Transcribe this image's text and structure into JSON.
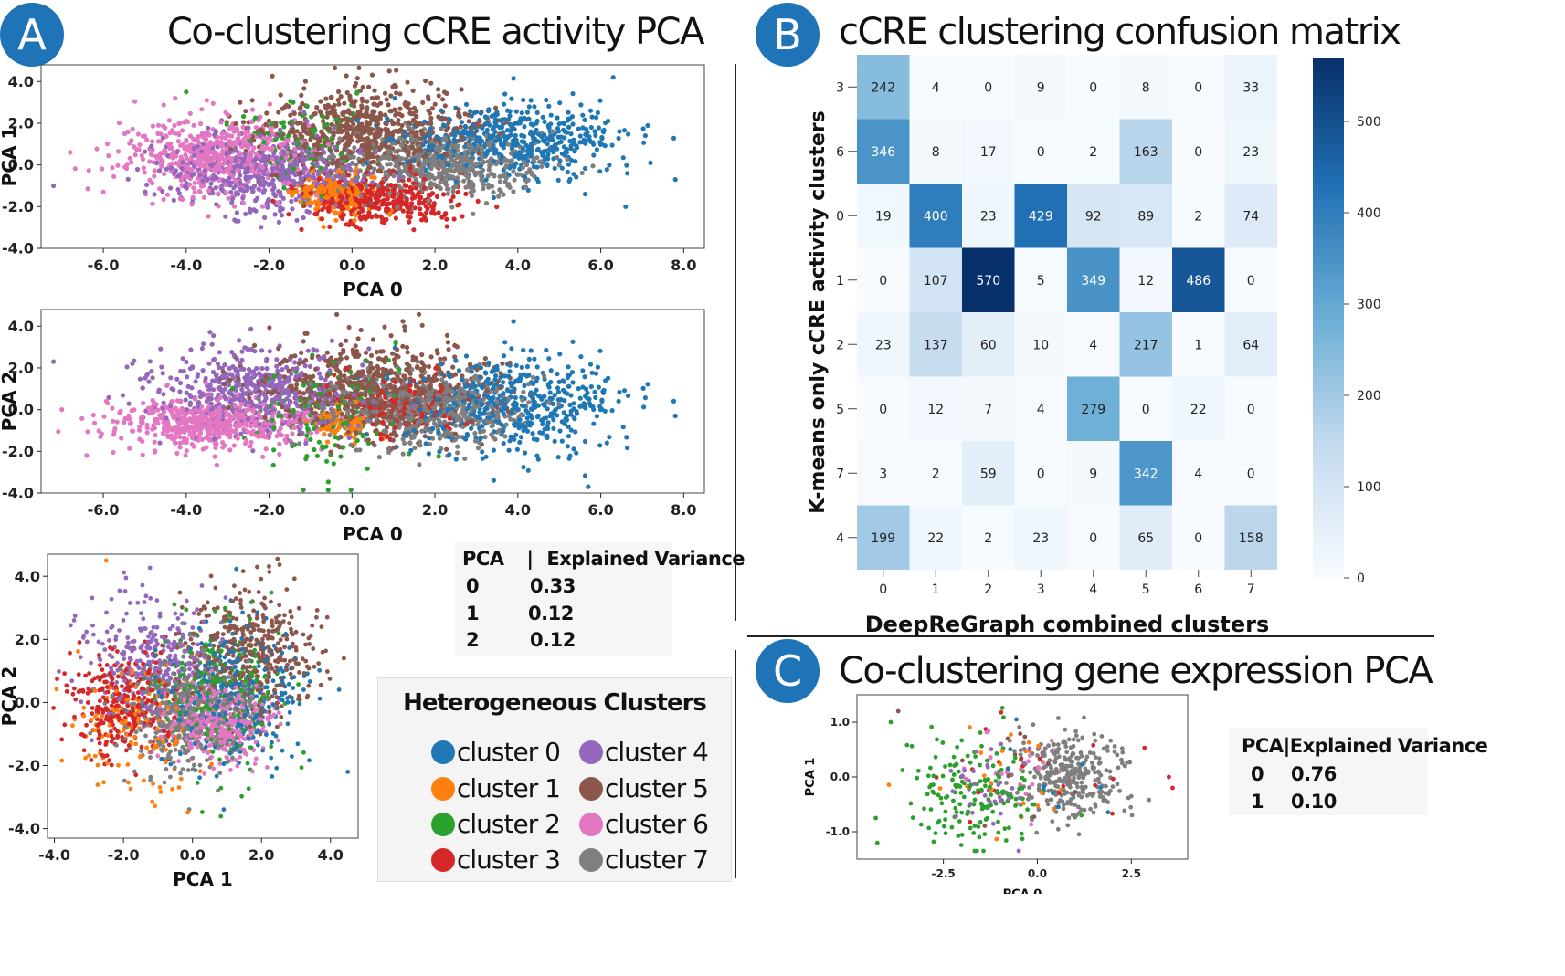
{
  "panelA": {
    "badge": "A",
    "title": "Co-clustering cCRE activity PCA",
    "table": {
      "header": [
        "PCA",
        "|",
        "Explained Variance"
      ],
      "rows": [
        [
          "0",
          "0.33"
        ],
        [
          "1",
          "0.12"
        ],
        [
          "2",
          "0.12"
        ]
      ]
    },
    "legend": {
      "title": "Heterogeneous Clusters",
      "items": [
        {
          "label": "cluster 0",
          "color": "#1f77b4"
        },
        {
          "label": "cluster 1",
          "color": "#ff7f0e"
        },
        {
          "label": "cluster 2",
          "color": "#2ca02c"
        },
        {
          "label": "cluster 3",
          "color": "#d62728"
        },
        {
          "label": "cluster 4",
          "color": "#9467bd"
        },
        {
          "label": "cluster 5",
          "color": "#8c564b"
        },
        {
          "label": "cluster 6",
          "color": "#e377c2"
        },
        {
          "label": "cluster 7",
          "color": "#7f7f7f"
        }
      ]
    }
  },
  "panelB": {
    "badge": "B",
    "title": "cCRE clustering confusion matrix"
  },
  "panelC": {
    "badge": "C",
    "title": "Co-clustering gene expression PCA",
    "table": {
      "header": [
        "PCA",
        "|",
        "Explained Variance"
      ],
      "rows": [
        [
          "0",
          "0.76"
        ],
        [
          "1",
          "0.10"
        ]
      ]
    }
  },
  "chart_data": [
    {
      "id": "a1",
      "type": "scatter",
      "xlabel": "PCA 0",
      "ylabel": "PCA 1",
      "xlim": [
        -7.5,
        8.5
      ],
      "ylim": [
        -4.0,
        4.8
      ],
      "xticks": [
        "-6.0",
        "-4.0",
        "-2.0",
        "0.0",
        "2.0",
        "4.0",
        "6.0",
        "8.0"
      ],
      "yticks": [
        "4.0",
        "2.0",
        "0.0",
        "-2.0",
        "-4.0"
      ],
      "series": [
        {
          "name": "cluster 0",
          "color": "#1f77b4",
          "cx": 3.8,
          "cy": 1.2,
          "sx": 1.3,
          "sy": 0.9,
          "n": 520,
          "extra": [
            [
              6.3,
              4.2
            ],
            [
              7.8,
              -0.7
            ],
            [
              6.6,
              -2.0
            ],
            [
              7.2,
              0.1
            ]
          ]
        },
        {
          "name": "cluster 1",
          "color": "#ff7f0e",
          "cx": -0.4,
          "cy": -1.4,
          "sx": 0.5,
          "sy": 0.5,
          "n": 180,
          "extra": []
        },
        {
          "name": "cluster 2",
          "color": "#2ca02c",
          "cx": -1.2,
          "cy": 1.1,
          "sx": 0.8,
          "sy": 0.9,
          "n": 120,
          "extra": [
            [
              -4.0,
              3.5
            ]
          ]
        },
        {
          "name": "cluster 3",
          "color": "#d62728",
          "cx": 0.5,
          "cy": -1.6,
          "sx": 1.0,
          "sy": 0.6,
          "n": 380,
          "extra": []
        },
        {
          "name": "cluster 4",
          "color": "#9467bd",
          "cx": -2.2,
          "cy": -0.4,
          "sx": 1.2,
          "sy": 0.9,
          "n": 500,
          "extra": [
            [
              -7.2,
              -1.0
            ]
          ]
        },
        {
          "name": "cluster 5",
          "color": "#8c564b",
          "cx": 0.3,
          "cy": 1.6,
          "sx": 1.3,
          "sy": 1.0,
          "n": 680,
          "extra": [
            [
              0.9,
              4.5
            ]
          ]
        },
        {
          "name": "cluster 6",
          "color": "#e377c2",
          "cx": -3.3,
          "cy": 0.5,
          "sx": 1.1,
          "sy": 0.9,
          "n": 560,
          "extra": [
            [
              -6.8,
              0.6
            ],
            [
              -6.0,
              -1.3
            ]
          ]
        },
        {
          "name": "cluster 7",
          "color": "#7f7f7f",
          "cx": 2.0,
          "cy": 0.0,
          "sx": 1.2,
          "sy": 0.8,
          "n": 560,
          "extra": []
        }
      ]
    },
    {
      "id": "a2",
      "type": "scatter",
      "xlabel": "PCA 0",
      "ylabel": "PCA 2",
      "xlim": [
        -7.5,
        8.5
      ],
      "ylim": [
        -4.0,
        4.8
      ],
      "xticks": [
        "-6.0",
        "-4.0",
        "-2.0",
        "0.0",
        "2.0",
        "4.0",
        "6.0",
        "8.0"
      ],
      "yticks": [
        "4.0",
        "2.0",
        "0.0",
        "-2.0",
        "-4.0"
      ],
      "series": [
        {
          "name": "cluster 0",
          "color": "#1f77b4",
          "cx": 3.8,
          "cy": 0.3,
          "sx": 1.3,
          "sy": 1.2,
          "n": 520,
          "extra": [
            [
              7.8,
              -0.3
            ],
            [
              5.7,
              -3.7
            ]
          ]
        },
        {
          "name": "cluster 1",
          "color": "#ff7f0e",
          "cx": -0.3,
          "cy": -0.6,
          "sx": 0.4,
          "sy": 0.4,
          "n": 100,
          "extra": []
        },
        {
          "name": "cluster 2",
          "color": "#2ca02c",
          "cx": -0.6,
          "cy": -0.2,
          "sx": 1.0,
          "sy": 1.3,
          "n": 160,
          "extra": []
        },
        {
          "name": "cluster 3",
          "color": "#d62728",
          "cx": 1.2,
          "cy": 0.3,
          "sx": 0.9,
          "sy": 0.7,
          "n": 160,
          "extra": []
        },
        {
          "name": "cluster 4",
          "color": "#9467bd",
          "cx": -2.4,
          "cy": 0.9,
          "sx": 1.3,
          "sy": 1.0,
          "n": 500,
          "extra": [
            [
              -7.2,
              2.3
            ]
          ]
        },
        {
          "name": "cluster 5",
          "color": "#8c564b",
          "cx": 0.4,
          "cy": 1.0,
          "sx": 1.4,
          "sy": 1.1,
          "n": 680,
          "extra": []
        },
        {
          "name": "cluster 6",
          "color": "#e377c2",
          "cx": -3.4,
          "cy": -0.6,
          "sx": 1.2,
          "sy": 0.6,
          "n": 560,
          "extra": [
            [
              -7.0,
              0.0
            ],
            [
              -6.4,
              -2.2
            ]
          ]
        },
        {
          "name": "cluster 7",
          "color": "#7f7f7f",
          "cx": 1.8,
          "cy": 0.0,
          "sx": 1.2,
          "sy": 0.8,
          "n": 560,
          "extra": []
        }
      ]
    },
    {
      "id": "a3",
      "type": "scatter",
      "xlabel": "PCA 1",
      "ylabel": "PCA 2",
      "xlim": [
        -4.2,
        4.8
      ],
      "ylim": [
        -4.3,
        4.7
      ],
      "xticks": [
        "-4.0",
        "-2.0",
        "0.0",
        "2.0",
        "4.0"
      ],
      "yticks": [
        "4.0",
        "2.0",
        "0.0",
        "-2.0",
        "-4.0"
      ],
      "series": [
        {
          "name": "cluster 0",
          "color": "#1f77b4",
          "cx": 1.2,
          "cy": 0.3,
          "sx": 1.0,
          "sy": 1.2,
          "n": 320,
          "extra": [
            [
              4.5,
              -2.2
            ]
          ]
        },
        {
          "name": "cluster 1",
          "color": "#ff7f0e",
          "cx": -1.4,
          "cy": -0.6,
          "sx": 0.9,
          "sy": 1.0,
          "n": 160,
          "extra": [
            [
              -2.5,
              4.5
            ]
          ]
        },
        {
          "name": "cluster 2",
          "color": "#2ca02c",
          "cx": 0.8,
          "cy": 0.3,
          "sx": 0.9,
          "sy": 1.2,
          "n": 240,
          "extra": []
        },
        {
          "name": "cluster 3",
          "color": "#d62728",
          "cx": -2.1,
          "cy": 0.0,
          "sx": 0.8,
          "sy": 0.8,
          "n": 300,
          "extra": []
        },
        {
          "name": "cluster 4",
          "color": "#9467bd",
          "cx": -1.2,
          "cy": 1.3,
          "sx": 1.0,
          "sy": 1.0,
          "n": 300,
          "extra": []
        },
        {
          "name": "cluster 5",
          "color": "#8c564b",
          "cx": 1.6,
          "cy": 1.6,
          "sx": 1.0,
          "sy": 1.0,
          "n": 420,
          "extra": []
        },
        {
          "name": "cluster 6",
          "color": "#e377c2",
          "cx": 0.8,
          "cy": -0.6,
          "sx": 0.7,
          "sy": 0.6,
          "n": 380,
          "extra": []
        },
        {
          "name": "cluster 7",
          "color": "#7f7f7f",
          "cx": -0.2,
          "cy": -0.3,
          "sx": 0.9,
          "sy": 0.9,
          "n": 450,
          "extra": []
        }
      ]
    },
    {
      "id": "b",
      "type": "heatmap",
      "xlabel": "DeepReGraph combined clusters",
      "ylabel": "K-means only cCRE activity clusters",
      "x_labels": [
        "0",
        "1",
        "2",
        "3",
        "4",
        "5",
        "6",
        "7"
      ],
      "y_labels": [
        "3",
        "6",
        "0",
        "1",
        "2",
        "5",
        "7",
        "4"
      ],
      "values": [
        [
          242,
          4,
          0,
          9,
          0,
          8,
          0,
          33
        ],
        [
          346,
          8,
          17,
          0,
          2,
          163,
          0,
          23
        ],
        [
          19,
          400,
          23,
          429,
          92,
          89,
          2,
          74
        ],
        [
          0,
          107,
          570,
          5,
          349,
          12,
          486,
          0
        ],
        [
          23,
          137,
          60,
          10,
          4,
          217,
          1,
          64
        ],
        [
          0,
          12,
          7,
          4,
          279,
          0,
          22,
          0
        ],
        [
          3,
          2,
          59,
          0,
          9,
          342,
          4,
          0
        ],
        [
          199,
          22,
          2,
          23,
          0,
          65,
          0,
          158
        ]
      ],
      "colorbar": {
        "min": 0,
        "max": 570,
        "ticks": [
          "0",
          "100",
          "200",
          "300",
          "400",
          "500"
        ]
      }
    },
    {
      "id": "c",
      "type": "scatter",
      "xlabel": "PCA 0",
      "ylabel": "PCA 1",
      "xlim": [
        -4.8,
        4.0
      ],
      "ylim": [
        -1.5,
        1.5
      ],
      "xticks": [
        "-2.5",
        "0.0",
        "2.5"
      ],
      "yticks": [
        "1.0",
        "0.0",
        "-1.0"
      ],
      "series": [
        {
          "name": "cluster 7",
          "color": "#7f7f7f",
          "cx": 1.0,
          "cy": 0.0,
          "sx": 0.7,
          "sy": 0.35,
          "n": 300,
          "extra": []
        },
        {
          "name": "cluster 2",
          "color": "#2ca02c",
          "cx": -1.6,
          "cy": -0.3,
          "sx": 0.9,
          "sy": 0.5,
          "n": 170,
          "extra": [
            [
              -4.3,
              -0.75
            ],
            [
              -3.9,
              1.0
            ]
          ]
        },
        {
          "name": "cluster 4",
          "color": "#9467bd",
          "cx": -1.2,
          "cy": -0.2,
          "sx": 0.6,
          "sy": 0.4,
          "n": 40,
          "extra": []
        },
        {
          "name": "cluster 6",
          "color": "#e377c2",
          "cx": -0.5,
          "cy": 0.1,
          "sx": 0.7,
          "sy": 0.4,
          "n": 25,
          "extra": []
        },
        {
          "name": "cluster 1",
          "color": "#ff7f0e",
          "cx": -0.7,
          "cy": 0.0,
          "sx": 0.9,
          "sy": 0.5,
          "n": 25,
          "extra": []
        },
        {
          "name": "cluster 3",
          "color": "#d62728",
          "cx": 0.2,
          "cy": 0.1,
          "sx": 1.4,
          "sy": 0.5,
          "n": 20,
          "extra": [
            [
              3.5,
              0.0
            ],
            [
              3.6,
              -0.2
            ]
          ]
        },
        {
          "name": "cluster 0",
          "color": "#1f77b4",
          "cx": 0.6,
          "cy": 0.0,
          "sx": 0.8,
          "sy": 0.4,
          "n": 12,
          "extra": []
        },
        {
          "name": "cluster 5",
          "color": "#8c564b",
          "cx": -0.4,
          "cy": 0.2,
          "sx": 1.2,
          "sy": 0.5,
          "n": 12,
          "extra": [
            [
              -3.7,
              1.2
            ]
          ]
        }
      ]
    }
  ]
}
